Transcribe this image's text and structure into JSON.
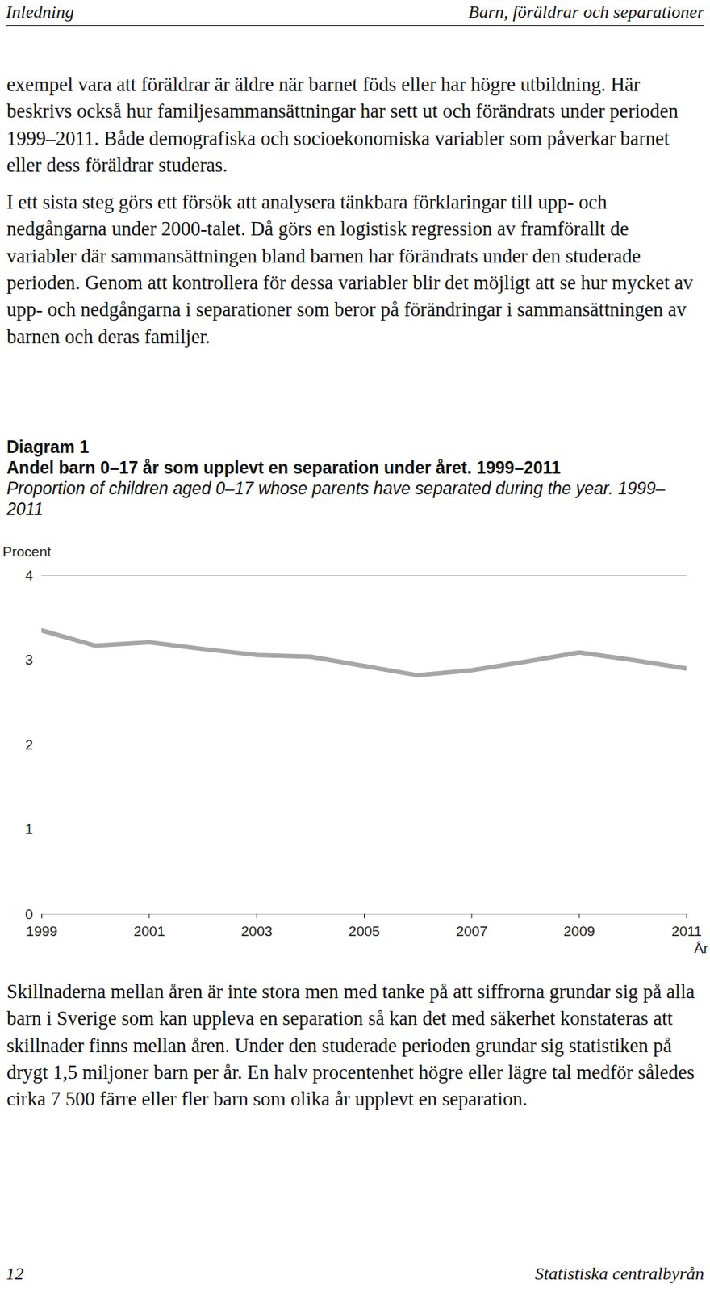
{
  "header": {
    "left": "Inledning",
    "right": "Barn, föräldrar och separationer"
  },
  "paragraphs_top": [
    "exempel vara att föräldrar är äldre när barnet föds eller har högre utbildning. Här beskrivs också hur familjesammansättningar har sett ut och förändrats under perioden 1999–2011. Både demografiska och socioekonomiska variabler som påverkar barnet eller dess föräldrar studeras.",
    "I ett sista steg görs ett försök att analysera tänkbara förklaringar till upp- och nedgångarna under 2000-talet. Då görs en logistisk regression av framförallt de variabler där sammansättningen bland barnen har förändrats under den studerade perioden. Genom att kontrollera för dessa variabler blir det möjligt att se hur mycket av upp- och nedgångarna i separationer som beror på förändringar i sammansättningen av barnen och deras familjer."
  ],
  "diagram": {
    "label": "Diagram 1",
    "title_sv": "Andel barn 0–17 år som upplevt en separation under året. 1999–2011",
    "title_en": "Proportion of children aged 0–17 whose parents have separated during the year. 1999–2011"
  },
  "chart_data": {
    "type": "line",
    "x": [
      1999,
      2000,
      2001,
      2002,
      2003,
      2004,
      2005,
      2006,
      2007,
      2008,
      2009,
      2010,
      2011
    ],
    "values": [
      3.35,
      3.17,
      3.21,
      3.13,
      3.06,
      3.04,
      2.93,
      2.82,
      2.88,
      2.98,
      3.09,
      3.0,
      2.9
    ],
    "color": "#a6a6a6",
    "xlim": [
      1999,
      2011
    ],
    "xticks": [
      1999,
      2001,
      2003,
      2005,
      2007,
      2009,
      2011
    ],
    "ylim": [
      0,
      4
    ],
    "yticks": [
      0,
      1,
      2,
      3,
      4
    ],
    "ylabel": "Procent",
    "xlabel": "År",
    "grid": false
  },
  "paragraphs_bottom": [
    "Skillnaderna mellan åren är inte stora men med tanke på att siffrorna grundar sig på alla barn i Sverige som kan uppleva en separation så kan det med säkerhet konstateras att skillnader finns mellan åren. Under den studerade perioden grundar sig statistiken på drygt 1,5 miljoner barn per år. En halv procentenhet högre eller lägre tal medför således cirka 7 500 färre eller fler barn som olika år upplevt en separation."
  ],
  "footer": {
    "page": "12",
    "publisher": "Statistiska centralbyrån"
  }
}
